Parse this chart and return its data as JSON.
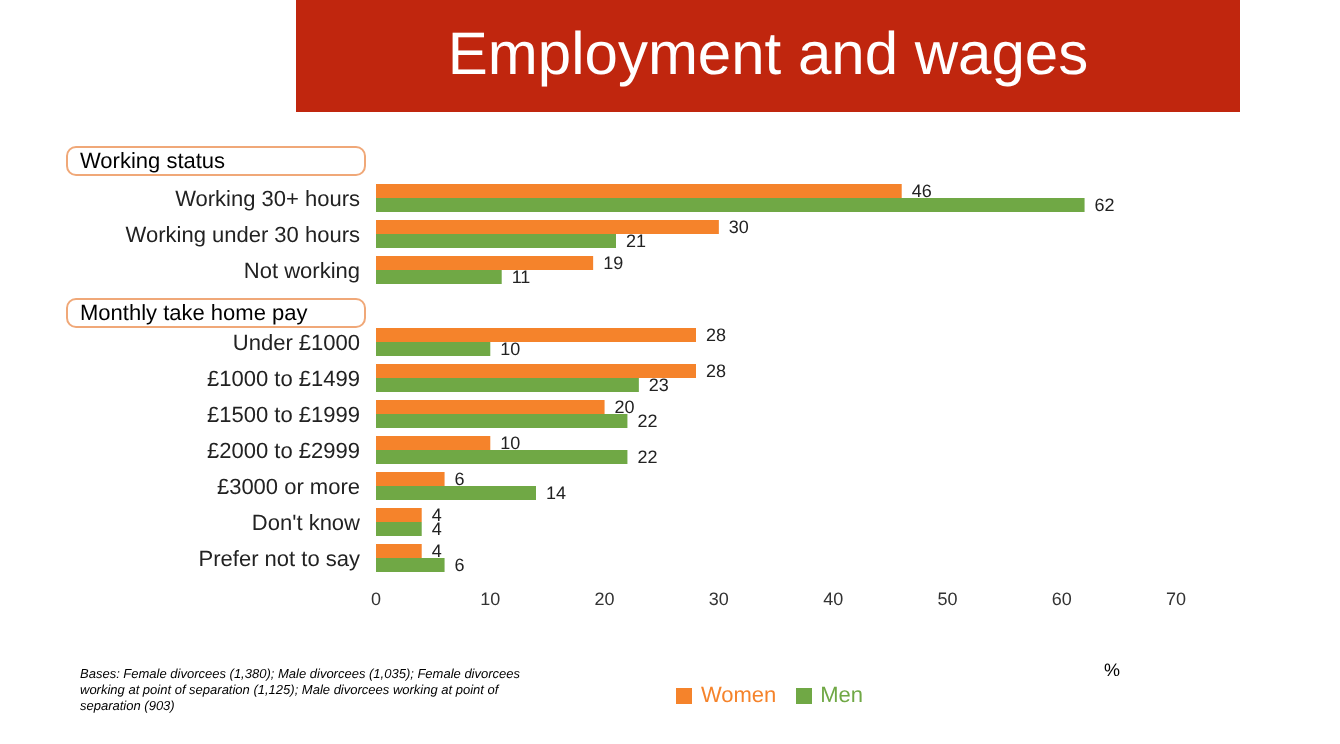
{
  "chart_data": {
    "type": "bar",
    "orientation": "horizontal",
    "title": "Employment and wages",
    "xlabel": "%",
    "categories": [
      null,
      "Working 30+ hours",
      "Working under 30 hours",
      "Not working",
      null,
      "Under £1000",
      "£1000 to £1499",
      "£1500 to £1999",
      "£2000 to £2999",
      "£3000 or more",
      "Don't know",
      "Prefer not to say"
    ],
    "series": [
      {
        "name": "Women",
        "color": "#f5832b",
        "values": [
          null,
          46,
          30,
          19,
          null,
          28,
          28,
          20,
          10,
          6,
          4,
          4
        ]
      },
      {
        "name": "Men",
        "color": "#70a845",
        "values": [
          null,
          62,
          21,
          11,
          null,
          10,
          23,
          22,
          22,
          14,
          4,
          6
        ]
      }
    ],
    "xlim": [
      0,
      70
    ],
    "xticks": [
      0,
      10,
      20,
      30,
      40,
      50,
      60,
      70
    ],
    "data_labels": true,
    "legend": "bottom",
    "annotations": [
      "Working status",
      "Monthly take home pay",
      "Bases: Female divorcees (1,380); Male divorcees (1,035); Female divorcees working at point of separation (1,125); Male divorcees working at point of separation (903)"
    ]
  }
}
